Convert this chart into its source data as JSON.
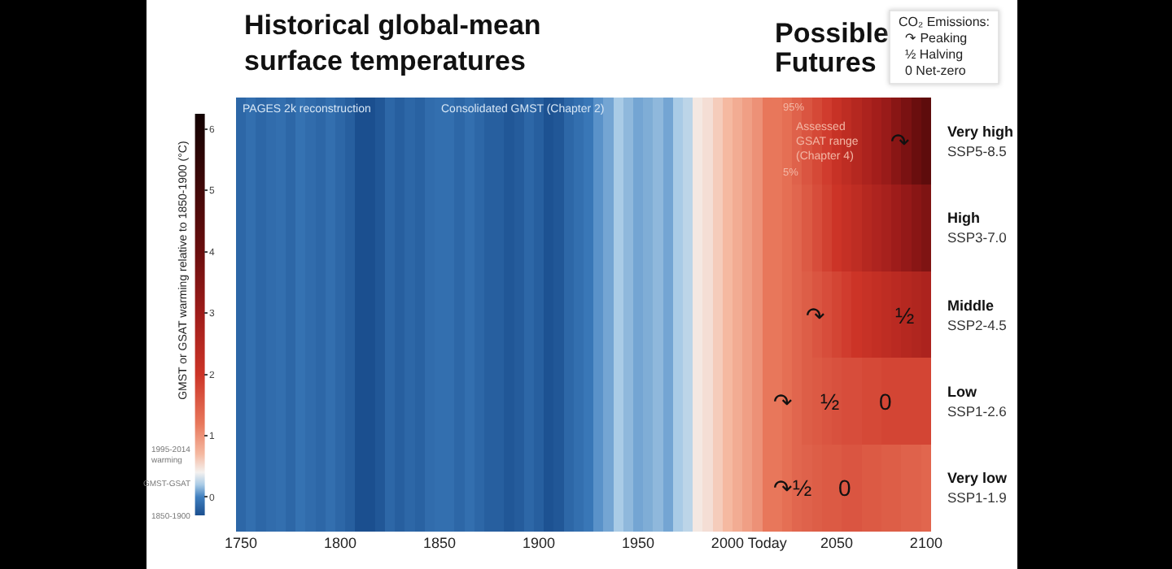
{
  "chart_data": [
    {
      "type": "heatmap",
      "title": "Historical global-mean surface temperatures",
      "clabel": "GMST or GSAT warming relative to 1850-1900 (°C)",
      "clim": [
        -0.3,
        6.25
      ],
      "cticks": [
        0,
        1,
        2,
        3,
        4,
        5,
        6
      ],
      "categories": [
        "1750",
        null,
        null,
        null,
        null,
        null,
        null,
        null,
        null,
        null,
        "1800",
        null,
        null,
        null,
        null,
        null,
        null,
        null,
        null,
        null,
        "1850",
        null,
        null,
        null,
        null,
        null,
        null,
        null,
        null,
        null,
        "1900",
        null,
        null,
        null,
        null,
        null,
        null,
        null,
        null,
        null,
        "1950",
        null,
        null,
        null,
        null,
        null,
        null,
        null,
        null,
        "2000",
        null,
        null,
        null,
        "Today",
        null,
        null,
        null,
        null,
        null,
        null,
        "2050",
        null,
        null,
        null,
        null,
        null,
        null,
        null,
        null,
        "2100"
      ],
      "y_categories": [
        "Very high",
        "High",
        "Middle",
        "Low",
        "Very low"
      ],
      "y2_categories": [
        "SSP5-8.5",
        "SSP3-7.0",
        "SSP2-4.5",
        "SSP1-2.6",
        "SSP1-1.9"
      ],
      "cells": [
        [
          -0.15,
          -0.1,
          -0.15,
          -0.12,
          -0.1,
          -0.15,
          -0.08,
          -0.12,
          -0.15,
          -0.1,
          -0.15,
          -0.2,
          -0.3,
          -0.3,
          -0.25,
          -0.15,
          -0.2,
          -0.15,
          -0.18,
          -0.12,
          -0.1,
          -0.1,
          -0.15,
          -0.1,
          -0.15,
          -0.2,
          -0.2,
          -0.25,
          -0.22,
          -0.15,
          -0.2,
          -0.28,
          -0.25,
          -0.15,
          -0.1,
          -0.05,
          0.05,
          0.1,
          0.2,
          0.15,
          0.1,
          0.12,
          0.15,
          0.1,
          0.2,
          0.25,
          0.45,
          0.5,
          0.6,
          0.7,
          0.8,
          0.9,
          1.0,
          1.2,
          1.2,
          1.3,
          1.45,
          1.6,
          1.75,
          1.9,
          2.1,
          2.3,
          2.5,
          2.7,
          2.9,
          3.1,
          3.4,
          3.7,
          4.0,
          4.3
        ],
        [
          -0.15,
          -0.1,
          -0.15,
          -0.12,
          -0.1,
          -0.15,
          -0.08,
          -0.12,
          -0.15,
          -0.1,
          -0.15,
          -0.2,
          -0.3,
          -0.3,
          -0.25,
          -0.15,
          -0.2,
          -0.15,
          -0.18,
          -0.12,
          -0.1,
          -0.1,
          -0.15,
          -0.1,
          -0.15,
          -0.2,
          -0.2,
          -0.25,
          -0.22,
          -0.15,
          -0.2,
          -0.28,
          -0.25,
          -0.15,
          -0.1,
          -0.05,
          0.05,
          0.1,
          0.2,
          0.15,
          0.1,
          0.12,
          0.15,
          0.1,
          0.2,
          0.25,
          0.45,
          0.5,
          0.6,
          0.7,
          0.8,
          0.9,
          1.0,
          1.2,
          1.2,
          1.3,
          1.4,
          1.55,
          1.7,
          1.85,
          2.0,
          2.15,
          2.3,
          2.5,
          2.65,
          2.8,
          3.0,
          3.2,
          3.4,
          3.6
        ],
        [
          -0.15,
          -0.1,
          -0.15,
          -0.12,
          -0.1,
          -0.15,
          -0.08,
          -0.12,
          -0.15,
          -0.1,
          -0.15,
          -0.2,
          -0.3,
          -0.3,
          -0.25,
          -0.15,
          -0.2,
          -0.15,
          -0.18,
          -0.12,
          -0.1,
          -0.1,
          -0.15,
          -0.1,
          -0.15,
          -0.2,
          -0.2,
          -0.25,
          -0.22,
          -0.15,
          -0.2,
          -0.28,
          -0.25,
          -0.15,
          -0.1,
          -0.05,
          0.05,
          0.1,
          0.2,
          0.15,
          0.1,
          0.12,
          0.15,
          0.1,
          0.2,
          0.25,
          0.45,
          0.5,
          0.6,
          0.7,
          0.8,
          0.9,
          1.0,
          1.2,
          1.2,
          1.3,
          1.4,
          1.5,
          1.6,
          1.7,
          1.8,
          1.9,
          2.0,
          2.1,
          2.2,
          2.3,
          2.4,
          2.5,
          2.6,
          2.7
        ],
        [
          -0.15,
          -0.1,
          -0.15,
          -0.12,
          -0.1,
          -0.15,
          -0.08,
          -0.12,
          -0.15,
          -0.1,
          -0.15,
          -0.2,
          -0.3,
          -0.3,
          -0.25,
          -0.15,
          -0.2,
          -0.15,
          -0.18,
          -0.12,
          -0.1,
          -0.1,
          -0.15,
          -0.1,
          -0.15,
          -0.2,
          -0.2,
          -0.25,
          -0.22,
          -0.15,
          -0.2,
          -0.28,
          -0.25,
          -0.15,
          -0.1,
          -0.05,
          0.05,
          0.1,
          0.2,
          0.15,
          0.1,
          0.12,
          0.15,
          0.1,
          0.2,
          0.25,
          0.45,
          0.5,
          0.6,
          0.7,
          0.8,
          0.9,
          1.0,
          1.2,
          1.2,
          1.3,
          1.4,
          1.5,
          1.55,
          1.6,
          1.65,
          1.7,
          1.7,
          1.75,
          1.75,
          1.8,
          1.8,
          1.8,
          1.8,
          1.8
        ],
        [
          -0.15,
          -0.1,
          -0.15,
          -0.12,
          -0.1,
          -0.15,
          -0.08,
          -0.12,
          -0.15,
          -0.1,
          -0.15,
          -0.2,
          -0.3,
          -0.3,
          -0.25,
          -0.15,
          -0.2,
          -0.15,
          -0.18,
          -0.12,
          -0.1,
          -0.1,
          -0.15,
          -0.1,
          -0.15,
          -0.2,
          -0.2,
          -0.25,
          -0.22,
          -0.15,
          -0.2,
          -0.28,
          -0.25,
          -0.15,
          -0.1,
          -0.05,
          0.05,
          0.1,
          0.2,
          0.15,
          0.1,
          0.12,
          0.15,
          0.1,
          0.2,
          0.25,
          0.45,
          0.5,
          0.6,
          0.7,
          0.8,
          0.9,
          1.0,
          1.2,
          1.2,
          1.3,
          1.4,
          1.45,
          1.5,
          1.55,
          1.55,
          1.6,
          1.6,
          1.55,
          1.55,
          1.5,
          1.5,
          1.45,
          1.45,
          1.4
        ]
      ],
      "annotations": [
        "PAGES 2k reconstruction",
        "Consolidated GMST (Chapter 2)",
        "1995-2014 warming",
        "GMST-GSAT",
        "1850-1900",
        "95%",
        "Assessed GSAT range (Chapter 4)",
        "5%",
        "↷",
        "↷",
        "½",
        "↷",
        "½",
        "0",
        "↷",
        "½",
        "0"
      ]
    },
    {
      "type": "other",
      "title": "Possible Futures",
      "annotations": [
        "CO₂ Emissions:",
        "↷ Peaking",
        "½ Halving",
        "0 Net-zero"
      ]
    }
  ]
}
